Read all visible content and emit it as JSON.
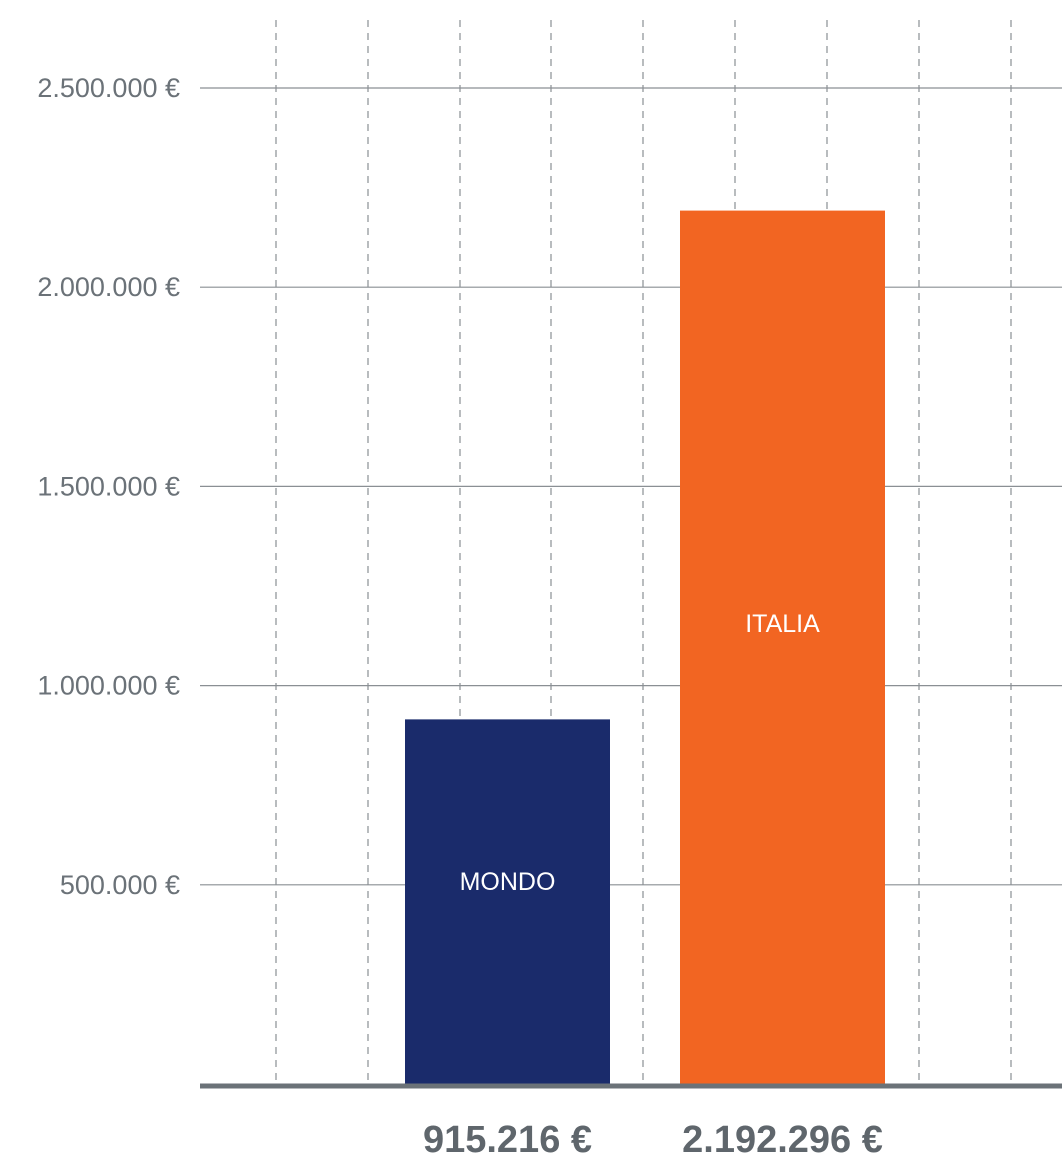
{
  "chart_data": {
    "type": "bar",
    "title": "",
    "xlabel": "",
    "ylabel": "",
    "categories": [
      "MONDO",
      "ITALIA"
    ],
    "values": [
      915216,
      2192296
    ],
    "value_labels": [
      "915.216 €",
      "2.192.296 €"
    ],
    "ylim": [
      0,
      2500000
    ],
    "yticks": [
      500000,
      1000000,
      1500000,
      2000000,
      2500000
    ],
    "ytick_labels": [
      "500.000 €",
      "1.000.000 €",
      "1.500.000 €",
      "2.000.000 €",
      "2.500.000 €"
    ],
    "grid": {
      "horizontal": true,
      "vertical_dashed": true
    },
    "legend": "none",
    "colors": {
      "MONDO": "#1a2b6b",
      "ITALIA": "#f26522",
      "axis": "#6b7278",
      "grid": "#8a8f94",
      "tick_text": "#6b7278",
      "value_text": "#5f666c"
    }
  }
}
